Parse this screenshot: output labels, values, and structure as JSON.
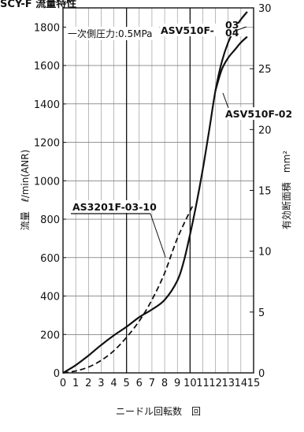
{
  "header_text": "SCY-F 流量特性",
  "chart_data": {
    "type": "line",
    "annotation": "一次側圧力:0.5MPa",
    "xlabel": "ニードル回転数　回",
    "ylabel": "流量　ℓ/min(ANR)",
    "y2label": "有効断面積　mm²",
    "xlim": [
      0,
      15
    ],
    "ylim": [
      0,
      1900
    ],
    "y2lim": [
      0,
      30
    ],
    "x_ticks": [
      0,
      1,
      2,
      3,
      4,
      5,
      6,
      7,
      8,
      9,
      10,
      11,
      12,
      13,
      14,
      15
    ],
    "y_ticks": [
      0,
      200,
      400,
      600,
      800,
      1000,
      1200,
      1400,
      1600,
      1800
    ],
    "y2_ticks": [
      0,
      5,
      10,
      15,
      20,
      25,
      30
    ],
    "series": [
      {
        "name": "ASV510F-03",
        "name_top": "ASV510F-",
        "name_suffix": [
          "03",
          "04"
        ],
        "style": "solid",
        "x": [
          0,
          1,
          2,
          3,
          4,
          5,
          6,
          7,
          8,
          9,
          9.5,
          10,
          10.5,
          11,
          11.5,
          12,
          12.5,
          13,
          13.5,
          14,
          14.5
        ],
        "y": [
          0,
          40,
          90,
          145,
          195,
          240,
          290,
          330,
          380,
          480,
          580,
          720,
          880,
          1060,
          1260,
          1470,
          1620,
          1720,
          1790,
          1840,
          1880
        ]
      },
      {
        "name": "ASV510F-02",
        "style": "solid",
        "x": [
          12,
          12.5,
          13,
          13.5,
          14,
          14.5
        ],
        "y": [
          1470,
          1580,
          1640,
          1680,
          1720,
          1750
        ]
      },
      {
        "name": "AS3201F-03-10",
        "style": "dashed",
        "x": [
          0,
          1,
          2,
          3,
          4,
          5,
          6,
          7,
          8,
          9,
          10.2
        ],
        "y": [
          0,
          10,
          30,
          65,
          115,
          185,
          270,
          380,
          520,
          700,
          870
        ]
      }
    ]
  }
}
